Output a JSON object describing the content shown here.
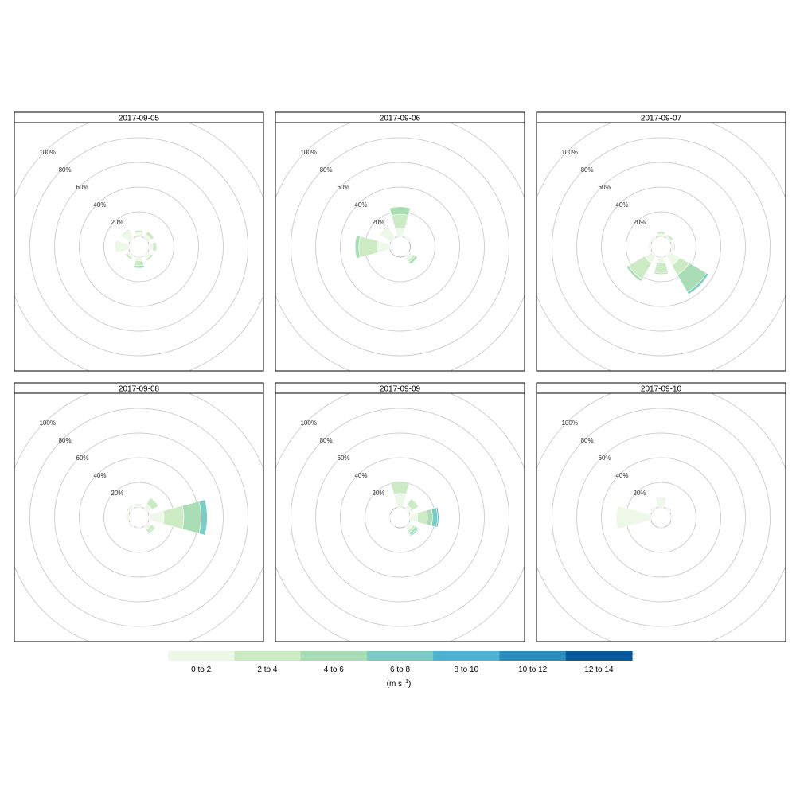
{
  "chart_data": {
    "type": "windrose",
    "ring_labels": [
      "20%",
      "40%",
      "60%",
      "80%",
      "100%"
    ],
    "ring_values": [
      20,
      40,
      60,
      80,
      100
    ],
    "speed_bins": [
      "0 to 2",
      "2 to 4",
      "4 to 6",
      "6 to 8",
      "8 to 10",
      "10 to 12",
      "12 to 14"
    ],
    "colors": [
      "#edf8e9",
      "#ccebc5",
      "#a8ddb5",
      "#7bccc4",
      "#4eb3d3",
      "#2b8cbe",
      "#08589e"
    ],
    "units": "(m s",
    "units_sup": "−1",
    "units_close": ")",
    "panels": [
      {
        "date": "2017-09-05",
        "sectors": [
          {
            "dir": 0,
            "cum": [
              3,
              5
            ]
          },
          {
            "dir": 45,
            "cum": [
              3,
              6
            ]
          },
          {
            "dir": 90,
            "cum": [
              3,
              6
            ]
          },
          {
            "dir": 135,
            "cum": [
              3,
              5
            ]
          },
          {
            "dir": 180,
            "cum": [
              3,
              7,
              9
            ]
          },
          {
            "dir": 225,
            "cum": [
              2,
              4
            ]
          },
          {
            "dir": 270,
            "cum": [
              11
            ]
          },
          {
            "dir": 315,
            "cum": [
              7,
              8
            ]
          }
        ]
      },
      {
        "date": "2017-09-06",
        "sectors": [
          {
            "dir": 0,
            "cum": [
              7,
              18,
              24
            ]
          },
          {
            "dir": 45,
            "cum": [
              2
            ]
          },
          {
            "dir": 135,
            "cum": [
              4,
              6,
              8
            ]
          },
          {
            "dir": 270,
            "cum": [
              10,
              25,
              28
            ]
          },
          {
            "dir": 315,
            "cum": [
              11
            ]
          }
        ]
      },
      {
        "date": "2017-09-07",
        "sectors": [
          {
            "dir": 0,
            "cum": [
              2,
              4
            ]
          },
          {
            "dir": 45,
            "cum": [
              1,
              3
            ]
          },
          {
            "dir": 90,
            "cum": [
              2,
              3
            ]
          },
          {
            "dir": 135,
            "cum": [
              9,
              18,
              34,
              36
            ]
          },
          {
            "dir": 180,
            "cum": [
              5,
              13,
              14
            ]
          },
          {
            "dir": 225,
            "cum": [
              7,
              22,
              24
            ]
          },
          {
            "dir": 270,
            "cum": [
              2
            ]
          },
          {
            "dir": 315,
            "cum": [
              2
            ]
          }
        ]
      },
      {
        "date": "2017-09-08",
        "sectors": [
          {
            "dir": 0,
            "cum": [
              3
            ]
          },
          {
            "dir": 45,
            "cum": [
              4,
              10
            ]
          },
          {
            "dir": 90,
            "cum": [
              12,
              28,
              42,
              47
            ]
          },
          {
            "dir": 135,
            "cum": [
              3,
              6,
              7
            ]
          },
          {
            "dir": 180,
            "cum": [
              1
            ]
          },
          {
            "dir": 225,
            "cum": [
              2
            ]
          },
          {
            "dir": 270,
            "cum": [
              2
            ]
          },
          {
            "dir": 315,
            "cum": [
              2,
              3
            ]
          }
        ]
      },
      {
        "date": "2017-09-09",
        "sectors": [
          {
            "dir": 0,
            "cum": [
              11,
              21
            ]
          },
          {
            "dir": 45,
            "cum": [
              3,
              9
            ]
          },
          {
            "dir": 90,
            "cum": [
              6,
              14,
              18,
              22,
              23
            ]
          },
          {
            "dir": 135,
            "cum": [
              4,
              6,
              8,
              9
            ]
          },
          {
            "dir": 225,
            "cum": [
              1
            ]
          },
          {
            "dir": 270,
            "cum": [
              1
            ]
          }
        ]
      },
      {
        "date": "2017-09-10",
        "sectors": [
          {
            "dir": 0,
            "cum": [
              8
            ]
          },
          {
            "dir": 45,
            "cum": [
              2
            ]
          },
          {
            "dir": 90,
            "cum": [
              1
            ]
          },
          {
            "dir": 180,
            "cum": [
              1
            ]
          },
          {
            "dir": 270,
            "cum": [
              28
            ]
          },
          {
            "dir": 315,
            "cum": [
              2
            ]
          }
        ]
      }
    ]
  }
}
